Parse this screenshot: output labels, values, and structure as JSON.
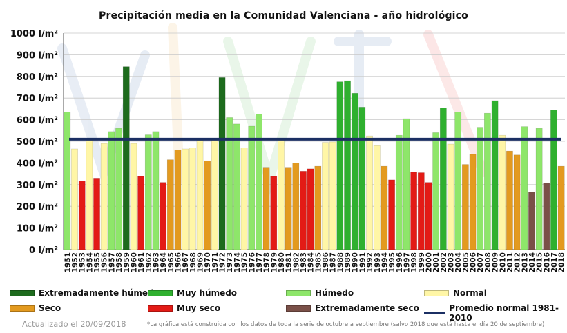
{
  "colors": {
    "extremadamente_humedo": "#1d6b1d",
    "muy_humedo": "#2fb02f",
    "humedo": "#8ee66a",
    "normal": "#fff6a6",
    "seco": "#e39a1f",
    "muy_seco": "#e31b16",
    "extremadamente_seco": "#7a5048",
    "promedio": "#1b2f63"
  },
  "legend": [
    {
      "label": "Extremadamente húmedo",
      "cls": "extremadamente_humedo",
      "kind": "box"
    },
    {
      "label": "Muy húmedo",
      "cls": "muy_humedo",
      "kind": "box"
    },
    {
      "label": "Húmedo",
      "cls": "humedo",
      "kind": "box"
    },
    {
      "label": "Normal",
      "cls": "normal",
      "kind": "box"
    },
    {
      "label": "Seco",
      "cls": "seco",
      "kind": "box"
    },
    {
      "label": "Muy seco",
      "cls": "muy_seco",
      "kind": "box"
    },
    {
      "label": "Extremadamente seco",
      "cls": "extremadamente_seco",
      "kind": "box"
    },
    {
      "label": "Promedio normal 1981-2010",
      "cls": "promedio",
      "kind": "line"
    }
  ],
  "footer": {
    "updated": "Actualizado el 20/09/2018",
    "note": "*La gráfica está construida con los datos de toda la serie de octubre a septiembre (salvo 2018 que está hasta el día 20 de septiembre)"
  },
  "chart_data": {
    "type": "bar",
    "title": "Precipitación media en la Comunidad Valenciana - año hidrológico",
    "ylim": [
      0,
      1000
    ],
    "yticks": [
      "0 l/m²",
      "100 l/m²",
      "200 l/m²",
      "300 l/m²",
      "400 l/m²",
      "500 l/m²",
      "600 l/m²",
      "700 l/m²",
      "800 l/m²",
      "900 l/m²",
      "1000 l/m²"
    ],
    "average": 510,
    "average_label": "Promedio normal 1981-2010",
    "grid": true,
    "categories": [
      "1951",
      "1952",
      "1953",
      "1954",
      "1955",
      "1956",
      "1957",
      "1958",
      "1959",
      "1960",
      "1961",
      "1962",
      "1963",
      "1964",
      "1965",
      "1966",
      "1967",
      "1968",
      "1969",
      "1970",
      "1971",
      "1972",
      "1973",
      "1974",
      "1975",
      "1976",
      "1977",
      "1978",
      "1979",
      "1980",
      "1981",
      "1982",
      "1983",
      "1984",
      "1985",
      "1986",
      "1987",
      "1988",
      "1989",
      "1990",
      "1991",
      "1992",
      "1993",
      "1994",
      "1995",
      "1996",
      "1997",
      "1998",
      "1999",
      "2000",
      "2001",
      "2002",
      "2003",
      "2004",
      "2005",
      "2006",
      "2007",
      "2008",
      "2009",
      "2010",
      "2011",
      "2012",
      "2013",
      "2014",
      "2015",
      "2016",
      "2017",
      "2018"
    ],
    "values": [
      635,
      465,
      317,
      505,
      330,
      490,
      545,
      560,
      845,
      490,
      338,
      530,
      545,
      310,
      415,
      460,
      465,
      470,
      505,
      410,
      510,
      795,
      610,
      580,
      470,
      570,
      625,
      380,
      338,
      510,
      380,
      400,
      362,
      373,
      385,
      495,
      497,
      775,
      780,
      722,
      658,
      525,
      480,
      385,
      322,
      528,
      605,
      357,
      355,
      310,
      540,
      655,
      487,
      635,
      393,
      440,
      565,
      630,
      688,
      528,
      455,
      437,
      568,
      265,
      560,
      308,
      645,
      385
    ],
    "classes": [
      "humedo",
      "normal",
      "muy_seco",
      "normal",
      "muy_seco",
      "normal",
      "humedo",
      "humedo",
      "extremadamente_humedo",
      "normal",
      "muy_seco",
      "humedo",
      "humedo",
      "muy_seco",
      "seco",
      "seco",
      "normal",
      "normal",
      "normal",
      "seco",
      "normal",
      "extremadamente_humedo",
      "humedo",
      "humedo",
      "normal",
      "humedo",
      "humedo",
      "seco",
      "muy_seco",
      "normal",
      "seco",
      "seco",
      "muy_seco",
      "muy_seco",
      "seco",
      "normal",
      "normal",
      "muy_humedo",
      "muy_humedo",
      "muy_humedo",
      "muy_humedo",
      "normal",
      "normal",
      "seco",
      "muy_seco",
      "humedo",
      "humedo",
      "muy_seco",
      "muy_seco",
      "muy_seco",
      "humedo",
      "muy_humedo",
      "normal",
      "humedo",
      "seco",
      "seco",
      "humedo",
      "humedo",
      "muy_humedo",
      "normal",
      "seco",
      "seco",
      "humedo",
      "extremadamente_seco",
      "humedo",
      "extremadamente_seco",
      "muy_humedo",
      "seco"
    ]
  }
}
